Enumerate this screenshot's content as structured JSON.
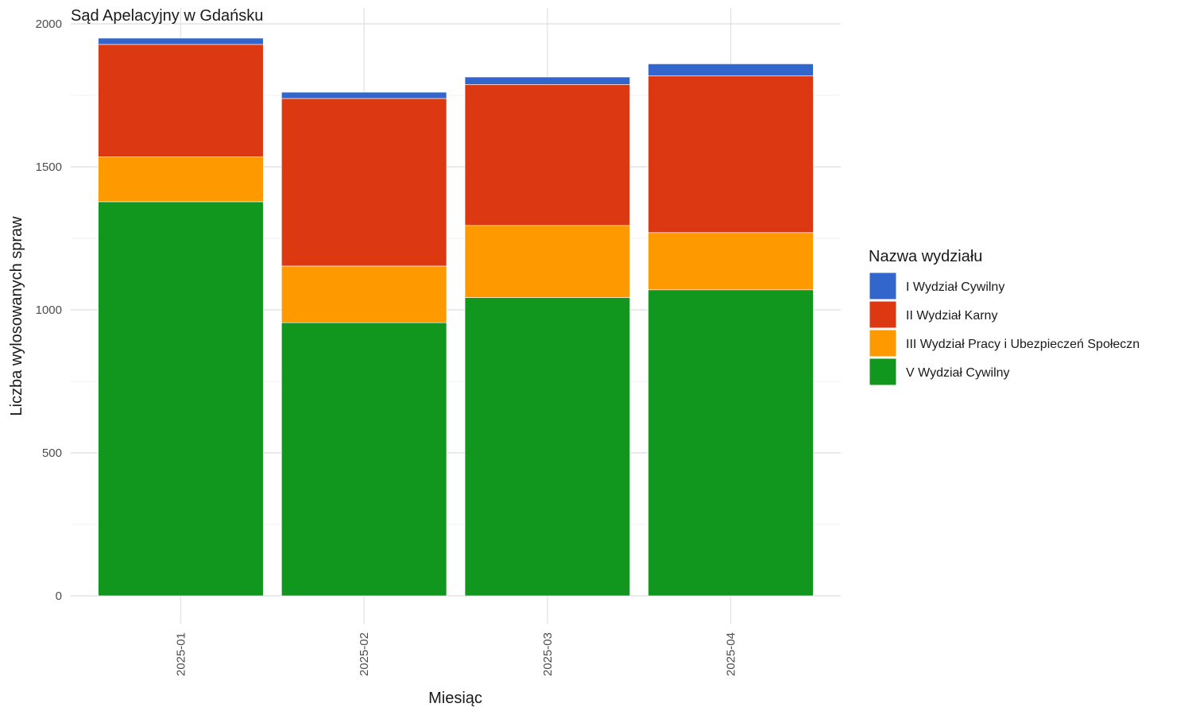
{
  "chart_data": {
    "type": "bar",
    "stacked": true,
    "title": "Sąd Apelacyjny w Gdańsku",
    "xlabel": "Miesiąc",
    "ylabel": "Liczba wylosowanych spraw",
    "ylim": [
      0,
      2000
    ],
    "yticks": [
      0,
      500,
      1000,
      1500,
      2000
    ],
    "grid": true,
    "legend_title": "Nazwa wydziału",
    "legend_position": "right",
    "categories": [
      "2025-01",
      "2025-02",
      "2025-03",
      "2025-04"
    ],
    "series": [
      {
        "name": "V Wydział Cywilny",
        "color": "#11971d",
        "values": [
          1378,
          955,
          1043,
          1070
        ]
      },
      {
        "name": "III Wydział Pracy i Ubezpieczeń Społeczn",
        "color": "#ff9900",
        "values": [
          157,
          198,
          252,
          200
        ]
      },
      {
        "name": "II Wydział Karny",
        "color": "#dc3912",
        "values": [
          393,
          586,
          493,
          548
        ]
      },
      {
        "name": "I Wydział Cywilny",
        "color": "#3366cc",
        "values": [
          22,
          22,
          26,
          42
        ]
      }
    ]
  }
}
